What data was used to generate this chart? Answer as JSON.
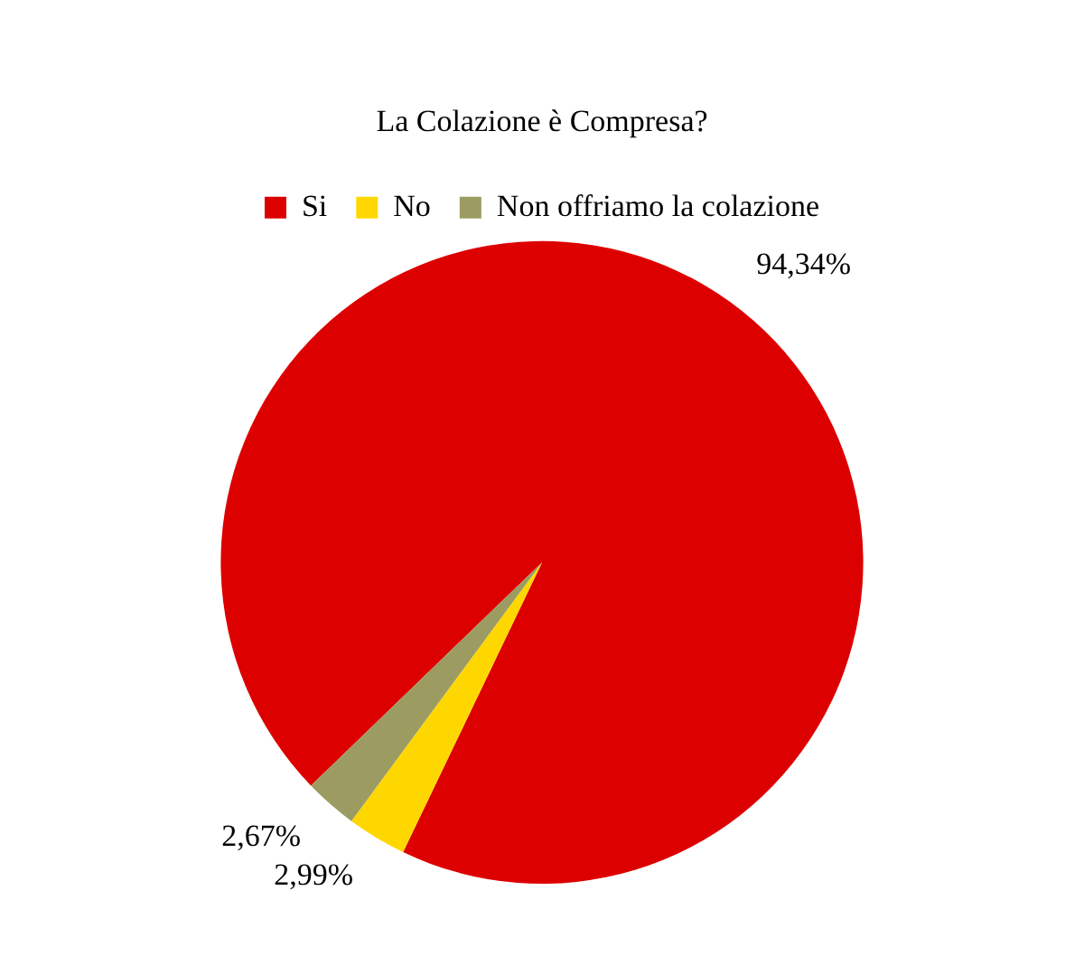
{
  "chart_data": {
    "type": "pie",
    "title": "La Colazione è Compresa?",
    "categories": [
      "Si",
      "No",
      "Non offriamo la colazione"
    ],
    "values": [
      94.34,
      2.99,
      2.67
    ],
    "colors": [
      "#dd0000",
      "#ffd700",
      "#9c9c62"
    ],
    "value_labels": [
      "94,34%",
      "2,99%",
      "2,67%"
    ],
    "legend": "top"
  }
}
